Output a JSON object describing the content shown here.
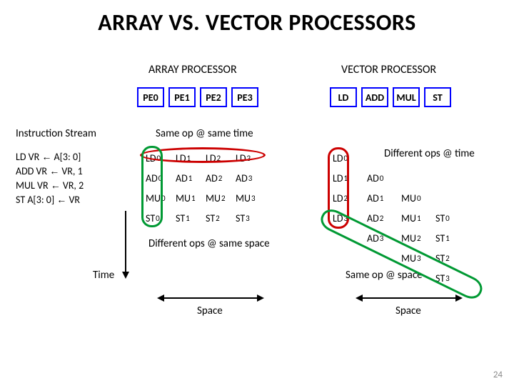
{
  "title": "ARRAY VS. VECTOR PROCESSORS",
  "headers": {
    "array": "ARRAY PROCESSOR",
    "vector": "VECTOR PROCESSOR"
  },
  "pe_array": {
    "boxes": [
      "PE0",
      "PE1",
      "PE2",
      "PE3"
    ],
    "border_color": "#0000ff",
    "text_color": "#000000"
  },
  "pe_vector": {
    "boxes": [
      "LD",
      "ADD",
      "MUL",
      "ST"
    ],
    "border_color": "#0000ff",
    "text_color": "#000000"
  },
  "instr_stream_label": "Instruction Stream",
  "instructions": [
    "LD    VR ← A[3: 0]",
    "ADD VR ← VR, 1",
    "MUL VR ← VR, 2",
    "ST    A[3: 0] ← VR"
  ],
  "labels": {
    "same_op_same_time": "Same op @ same time",
    "diff_ops_time": "Different ops @ time",
    "diff_ops_same_space": "Different ops @ same space",
    "same_op_space": "Same op @ space",
    "time": "Time",
    "space": "Space"
  },
  "array_matrix": {
    "cols": [
      "0",
      "1",
      "2",
      "3"
    ],
    "rows": [
      [
        "LD",
        "LD",
        "LD",
        "LD"
      ],
      [
        "AD",
        "AD",
        "AD",
        "AD"
      ],
      [
        "MU",
        "MU",
        "MU",
        "MU"
      ],
      [
        "ST",
        "ST",
        "ST",
        "ST"
      ]
    ]
  },
  "vector_stagger": {
    "cols": [
      [
        "LD",
        "LD",
        "LD",
        "LD"
      ],
      [
        "AD",
        "AD",
        "AD",
        "AD"
      ],
      [
        "MU",
        "MU",
        "MU",
        "MU"
      ],
      [
        "ST",
        "ST",
        "ST",
        "ST"
      ]
    ],
    "col_sub": [
      "0",
      "1",
      "2",
      "3"
    ]
  },
  "colors": {
    "oval_red": "#cc0000",
    "oval_green": "#009933",
    "black": "#000000"
  },
  "page_num": "24"
}
